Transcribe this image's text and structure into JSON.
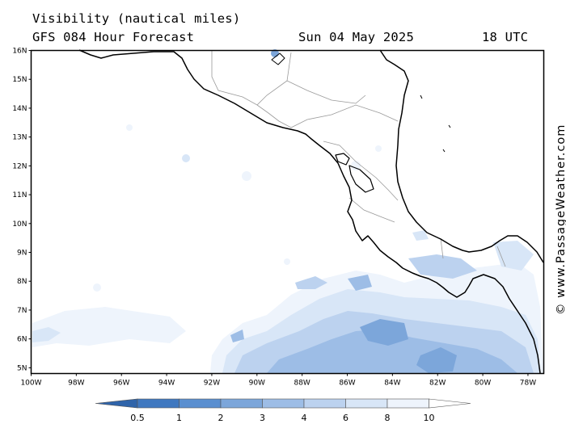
{
  "header": {
    "line1": "Visibility (nautical miles)",
    "line2": "GFS 084 Hour Forecast",
    "date": "Sun 04 May 2025",
    "time": "18 UTC"
  },
  "map": {
    "lat_labels": [
      "16N",
      "15N",
      "14N",
      "13N",
      "12N",
      "11N",
      "10N",
      "9N",
      "8N",
      "7N",
      "6N",
      "5N"
    ],
    "lon_labels": [
      "100W",
      "98W",
      "96W",
      "94W",
      "92W",
      "90W",
      "88W",
      "86W",
      "84W",
      "82W",
      "80W",
      "78W"
    ],
    "lat_range": [
      4.8,
      16
    ],
    "lon_range": [
      -100,
      -77.3
    ]
  },
  "legend": {
    "ticks": [
      "0.5",
      "1",
      "2",
      "3",
      "4",
      "6",
      "8",
      "10"
    ],
    "colors": [
      "#3f78c0",
      "#5a8fd0",
      "#7ca6da",
      "#9dbde6",
      "#bcd2ef",
      "#d8e6f7",
      "#eef4fc",
      "#ffffff"
    ]
  },
  "credit": "© www.PassageWeather.com"
}
